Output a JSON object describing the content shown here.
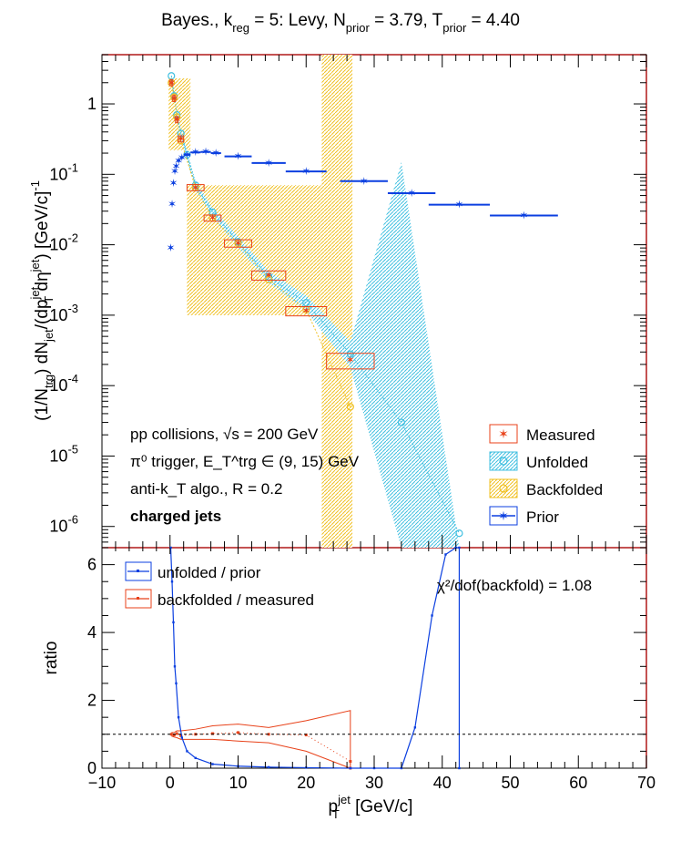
{
  "chart_data": [
    {
      "type": "scatter",
      "title": "Bayes., k_reg = 5: Levy, N_prior = 3.79, T_prior = 4.40",
      "title_parts": {
        "a": "Bayes., k",
        "a_sub": "reg",
        "b": " = 5: Levy, N",
        "b_sub": "prior",
        "c": " = 3.79, T",
        "c_sub": "prior",
        "d": " = 4.40"
      },
      "ylabel": "(1/N_trg) dN_jet/(dp_T^jet dη^jet) [GeV/c]^-1",
      "y_scale": "log",
      "xlim": [
        -10,
        70
      ],
      "ylim": [
        5e-07,
        5
      ],
      "y_tick_labels": [
        "1",
        "10",
        "10",
        "10",
        "10",
        "10",
        "10"
      ],
      "y_tick_exponents": [
        "",
        "-1",
        "-2",
        "-3",
        "-4",
        "-5",
        "-6"
      ],
      "annotations": {
        "line1": "pp collisions, √s = 200 GeV",
        "line2": "π⁰ trigger, E_T^trg ∈ (9, 15) GeV",
        "line3": "anti-k_T algo., R = 0.2",
        "line4": "charged jets"
      },
      "legend_position": "bottom-right",
      "legend": [
        "Measured",
        "Unfolded",
        "Backfolded",
        "Prior"
      ],
      "colors": {
        "measured": "#e8421a",
        "unfolded": "#3fbfe0",
        "backfolded": "#f0c020",
        "prior": "#0b3fe0"
      },
      "series": [
        {
          "name": "Measured",
          "x": [
            0.2,
            0.6,
            1.0,
            1.6,
            3.75,
            6.25,
            10.0,
            14.5,
            20.0,
            26.5
          ],
          "y": [
            2.0,
            1.2,
            0.6,
            0.32,
            0.065,
            0.024,
            0.0105,
            0.0037,
            0.00115,
            0.00023
          ],
          "xerr": [
            0.2,
            0.2,
            0.2,
            0.4,
            1.25,
            1.25,
            2.0,
            2.5,
            3.0,
            3.5
          ],
          "yerr_rel": [
            0.1,
            0.1,
            0.1,
            0.1,
            0.1,
            0.1,
            0.12,
            0.15,
            0.15,
            0.25
          ]
        },
        {
          "name": "Unfolded",
          "x": [
            0.2,
            0.6,
            1.0,
            1.6,
            2.5,
            3.75,
            6.25,
            10.0,
            14.5,
            20.0,
            26.5,
            34.0,
            42.5
          ],
          "y": [
            2.5,
            1.3,
            0.7,
            0.38,
            0.19,
            0.07,
            0.029,
            0.011,
            0.0035,
            0.0015,
            0.00028,
            3e-05,
            8e-07
          ],
          "band_low": [
            2.2,
            1.15,
            0.62,
            0.33,
            0.16,
            0.06,
            0.025,
            0.0092,
            0.0029,
            0.00115,
            0.00018,
            3e-07,
            3e-07
          ],
          "band_high": [
            2.8,
            1.45,
            0.78,
            0.43,
            0.22,
            0.08,
            0.033,
            0.013,
            0.0042,
            0.0019,
            0.00042,
            0.15,
            3e-07
          ]
        },
        {
          "name": "Backfolded",
          "x": [
            0.2,
            0.6,
            1.0,
            1.6,
            3.75,
            6.25,
            10.0,
            14.5,
            20.0,
            26.5
          ],
          "y": [
            2.0,
            1.25,
            0.65,
            0.3,
            0.065,
            0.024,
            0.0105,
            0.0032,
            0.0012,
            5e-05
          ],
          "band": [
            {
              "x0": -0.2,
              "x1": 3.0,
              "low": 0.22,
              "high": 2.3
            },
            {
              "x0": 2.5,
              "x1": 22.3,
              "low": 0.001,
              "high": 0.07
            },
            {
              "x0": 22.3,
              "x1": 26.8,
              "low": 3e-07,
              "high": 5
            }
          ]
        },
        {
          "name": "Prior",
          "x": [
            0.1,
            0.3,
            0.5,
            0.7,
            0.9,
            1.25,
            1.75,
            2.5,
            3.75,
            5.25,
            6.75,
            10.0,
            14.5,
            20.0,
            28.5,
            35.5,
            42.5,
            52.0
          ],
          "y": [
            0.009,
            0.038,
            0.075,
            0.11,
            0.13,
            0.155,
            0.172,
            0.19,
            0.205,
            0.208,
            0.2,
            0.18,
            0.145,
            0.11,
            0.08,
            0.054,
            0.037,
            0.026
          ],
          "xerr": [
            0.1,
            0.1,
            0.1,
            0.1,
            0.1,
            0.25,
            0.25,
            0.5,
            0.75,
            0.75,
            0.75,
            2.0,
            2.5,
            3.0,
            3.5,
            3.5,
            4.5,
            5.0
          ]
        }
      ]
    },
    {
      "type": "line",
      "xlabel": "p_T^jet [GeV/c]",
      "xlabel_parts": {
        "base": "p",
        "sup": "jet",
        "sub": "T",
        "rest": " [GeV/c]"
      },
      "ylabel": "ratio",
      "xlim": [
        -10,
        70
      ],
      "ylim": [
        0,
        6.5
      ],
      "x_ticks": [
        -10,
        0,
        10,
        20,
        30,
        40,
        50,
        60,
        70
      ],
      "y_ticks": [
        0,
        2,
        4,
        6
      ],
      "reference_line": 1,
      "chi2_text": "χ²/dof(backfold) = 1.08",
      "legend_position": "top-left",
      "legend": [
        "unfolded / prior",
        "backfolded / measured"
      ],
      "series": [
        {
          "name": "unfolded / prior",
          "x": [
            0.1,
            0.3,
            0.5,
            0.7,
            0.9,
            1.25,
            1.75,
            2.5,
            3.75,
            6.25,
            10.0,
            14.5,
            20.0,
            26.5,
            30.0,
            34.0,
            36.0,
            38.5,
            40.5,
            42.0,
            42.5,
            42.5
          ],
          "y": [
            6.6,
            5.5,
            4.3,
            3.0,
            2.5,
            1.5,
            0.9,
            0.5,
            0.3,
            0.12,
            0.06,
            0.03,
            0.015,
            0.0,
            0.0,
            0.0,
            1.2,
            4.5,
            6.3,
            6.6,
            6.6,
            0.0
          ]
        },
        {
          "name": "backfolded / measured",
          "x": [
            0.2,
            0.6,
            1.0,
            1.6,
            3.75,
            6.25,
            10.0,
            14.5,
            20.0,
            26.5,
            26.5
          ],
          "y": [
            1.0,
            0.98,
            1.02,
            0.96,
            1.0,
            1.02,
            1.05,
            1.0,
            0.98,
            0.2,
            0.0
          ],
          "band_upper": [
            1.05,
            1.05,
            1.1,
            1.1,
            1.15,
            1.25,
            1.3,
            1.2,
            1.4,
            1.7,
            0.0
          ],
          "band_lower": [
            0.95,
            0.92,
            0.9,
            0.85,
            0.85,
            0.85,
            0.8,
            0.75,
            0.5,
            0.0,
            0.0
          ]
        }
      ]
    }
  ]
}
